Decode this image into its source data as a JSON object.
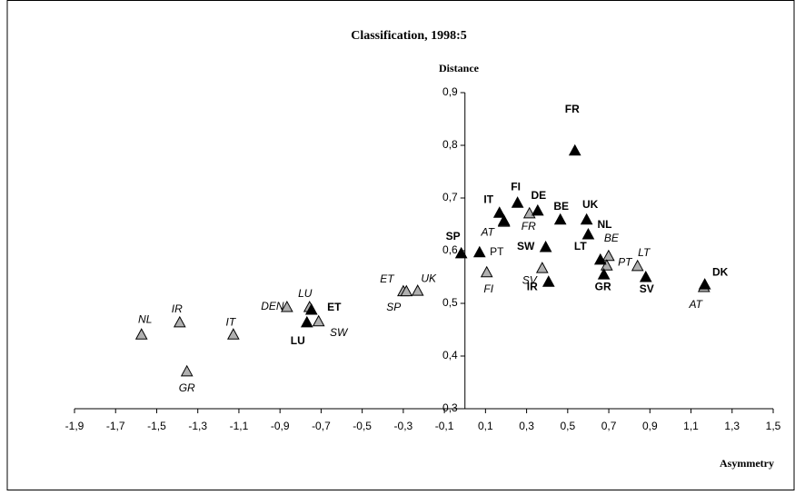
{
  "chart_data": {
    "type": "scatter",
    "title": "Classification, 1998:5",
    "x_label": "Asymmetry",
    "y_label": "Distance",
    "xlim": [
      -1.9,
      1.5
    ],
    "xticks": [
      {
        "value": -1.9,
        "label": "-1,9"
      },
      {
        "value": -1.7,
        "label": "-1,7"
      },
      {
        "value": -1.5,
        "label": "-1,5"
      },
      {
        "value": -1.3,
        "label": "-1,3"
      },
      {
        "value": -1.1,
        "label": "-1,1"
      },
      {
        "value": -0.9,
        "label": "-0,9"
      },
      {
        "value": -0.7,
        "label": "-0,7"
      },
      {
        "value": -0.5,
        "label": "-0,5"
      },
      {
        "value": -0.3,
        "label": "-0,3"
      },
      {
        "value": -0.1,
        "label": "-0,1"
      },
      {
        "value": 0.1,
        "label": "0,1"
      },
      {
        "value": 0.3,
        "label": "0,3"
      },
      {
        "value": 0.5,
        "label": "0,5"
      },
      {
        "value": 0.7,
        "label": "0,7"
      },
      {
        "value": 0.9,
        "label": "0,9"
      },
      {
        "value": 1.1,
        "label": "1,1"
      },
      {
        "value": 1.3,
        "label": "1,3"
      },
      {
        "value": 1.5,
        "label": "1,5"
      }
    ],
    "ylim": [
      0.3,
      0.9
    ],
    "yticks": [
      {
        "value": 0.3,
        "label": "0,3"
      },
      {
        "value": 0.4,
        "label": "0,4"
      },
      {
        "value": 0.5,
        "label": "0,5"
      },
      {
        "value": 0.6,
        "label": "0,6"
      },
      {
        "value": 0.7,
        "label": "0,7"
      },
      {
        "value": 0.8,
        "label": "0,8"
      },
      {
        "value": 0.9,
        "label": "0,9"
      }
    ],
    "series": [
      {
        "color": "#b0b0b0",
        "labels": [
          "NL",
          "IR",
          "IT",
          "GR",
          "DEN",
          "LU",
          "SW",
          "ET",
          "SP",
          "UK",
          "FI",
          "FR",
          "SV",
          "BE",
          "PT",
          "LT",
          "AT",
          "AT"
        ],
        "x": [
          -1.574,
          -1.388,
          -1.127,
          -1.353,
          -0.866,
          -0.756,
          -0.712,
          -0.3,
          -0.285,
          -0.23,
          0.106,
          0.314,
          0.376,
          0.699,
          0.69,
          0.84,
          1.163,
          0.19
        ],
        "values": [
          0.441,
          0.464,
          0.441,
          0.371,
          0.493,
          0.493,
          0.466,
          0.523,
          0.523,
          0.524,
          0.559,
          0.671,
          0.567,
          0.59,
          0.572,
          0.571,
          0.531,
          0.655
        ]
      },
      {
        "color": "#000000",
        "labels": [
          "FR",
          "IT",
          "FI",
          "DE",
          null,
          "BE",
          "UK",
          "NL",
          "SP",
          "PT",
          "SW",
          "LT",
          "GR",
          "IR",
          "SV",
          "DK",
          "ET",
          "LU"
        ],
        "x": [
          0.535,
          0.168,
          0.256,
          0.354,
          0.19,
          0.464,
          0.592,
          0.6,
          -0.018,
          0.071,
          0.393,
          0.659,
          0.676,
          0.407,
          0.88,
          1.167,
          -0.747,
          -0.769
        ],
        "values": [
          0.79,
          0.672,
          0.691,
          0.676,
          0.657,
          0.659,
          0.659,
          0.631,
          0.595,
          0.597,
          0.607,
          0.583,
          0.555,
          0.541,
          0.55,
          0.536,
          0.488,
          0.464
        ]
      }
    ]
  }
}
